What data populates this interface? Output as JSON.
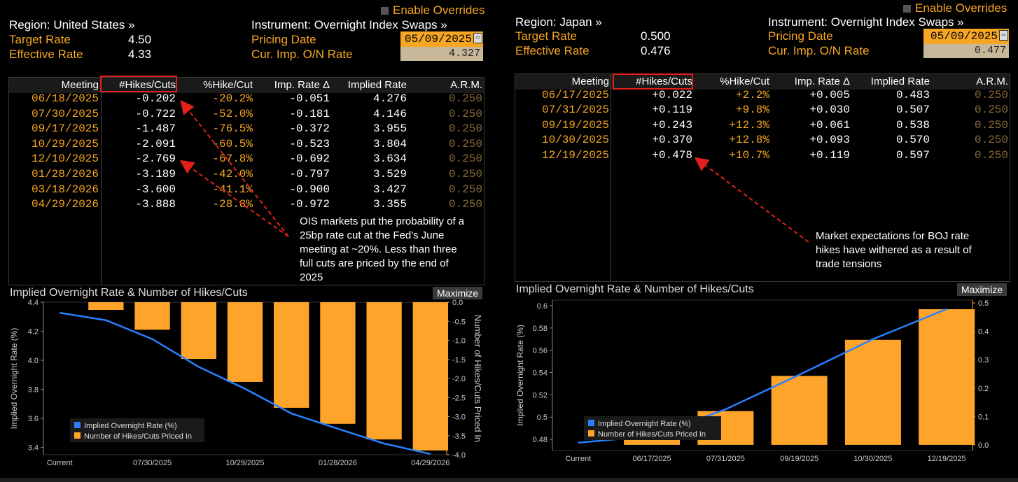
{
  "left": {
    "region": "Region: United States »",
    "enable_overrides": "Enable Overrides",
    "instrument": "Instrument: Overnight Index Swaps »",
    "target_rate_label": "Target Rate",
    "target_rate": "4.50",
    "effective_rate_label": "Effective Rate",
    "effective_rate": "4.33",
    "pricing_date_label": "Pricing Date",
    "pricing_date": "05/09/2025",
    "cur_imp_label": "Cur. Imp. O/N Rate",
    "cur_imp": "4.327",
    "columns": [
      "Meeting",
      "#Hikes/Cuts",
      "%Hike/Cut",
      "Imp. Rate Δ",
      "Implied Rate",
      "A.R.M."
    ],
    "rows": [
      {
        "meeting": "06/18/2025",
        "hikes": "-0.202",
        "pct": "-20.2%",
        "delta": "-0.051",
        "implied": "4.276",
        "arm": "0.250"
      },
      {
        "meeting": "07/30/2025",
        "hikes": "-0.722",
        "pct": "-52.0%",
        "delta": "-0.181",
        "implied": "4.146",
        "arm": "0.250"
      },
      {
        "meeting": "09/17/2025",
        "hikes": "-1.487",
        "pct": "-76.5%",
        "delta": "-0.372",
        "implied": "3.955",
        "arm": "0.250"
      },
      {
        "meeting": "10/29/2025",
        "hikes": "-2.091",
        "pct": "-60.5%",
        "delta": "-0.523",
        "implied": "3.804",
        "arm": "0.250"
      },
      {
        "meeting": "12/10/2025",
        "hikes": "-2.769",
        "pct": "-67.8%",
        "delta": "-0.692",
        "implied": "3.634",
        "arm": "0.250"
      },
      {
        "meeting": "01/28/2026",
        "hikes": "-3.189",
        "pct": "-42.0%",
        "delta": "-0.797",
        "implied": "3.529",
        "arm": "0.250"
      },
      {
        "meeting": "03/18/2026",
        "hikes": "-3.600",
        "pct": "-41.1%",
        "delta": "-0.900",
        "implied": "3.427",
        "arm": "0.250"
      },
      {
        "meeting": "04/29/2026",
        "hikes": "-3.888",
        "pct": "-28.8%",
        "delta": "-0.972",
        "implied": "3.355",
        "arm": "0.250"
      }
    ],
    "annotation": "OIS markets put the probability of a 25bp rate cut at the Fed's June meeting at ~20%. Less than three full cuts are priced by the end of 2025",
    "chart_title": "Implied Overnight Rate & Number of Hikes/Cuts",
    "maximize": "Maximize"
  },
  "right": {
    "region": "Region: Japan »",
    "enable_overrides": "Enable Overrides",
    "instrument": "Instrument: Overnight Index Swaps »",
    "target_rate_label": "Target Rate",
    "target_rate": "0.500",
    "effective_rate_label": "Effective Rate",
    "effective_rate": "0.476",
    "pricing_date_label": "Pricing Date",
    "pricing_date": "05/09/2025",
    "cur_imp_label": "Cur. Imp. O/N Rate",
    "cur_imp": "0.477",
    "columns": [
      "Meeting",
      "#Hikes/Cuts",
      "%Hike/Cut",
      "Imp. Rate Δ",
      "Implied Rate",
      "A.R.M."
    ],
    "rows": [
      {
        "meeting": "06/17/2025",
        "hikes": "+0.022",
        "pct": "+2.2%",
        "delta": "+0.005",
        "implied": "0.483",
        "arm": "0.250"
      },
      {
        "meeting": "07/31/2025",
        "hikes": "+0.119",
        "pct": "+9.8%",
        "delta": "+0.030",
        "implied": "0.507",
        "arm": "0.250"
      },
      {
        "meeting": "09/19/2025",
        "hikes": "+0.243",
        "pct": "+12.3%",
        "delta": "+0.061",
        "implied": "0.538",
        "arm": "0.250"
      },
      {
        "meeting": "10/30/2025",
        "hikes": "+0.370",
        "pct": "+12.8%",
        "delta": "+0.093",
        "implied": "0.570",
        "arm": "0.250"
      },
      {
        "meeting": "12/19/2025",
        "hikes": "+0.478",
        "pct": "+10.7%",
        "delta": "+0.119",
        "implied": "0.597",
        "arm": "0.250"
      }
    ],
    "annotation": "Market expectations for BOJ rate hikes have withered as a result of trade tensions",
    "chart_title": "Implied Overnight Rate & Number of Hikes/Cuts",
    "maximize": "Maximize"
  },
  "chart_data": [
    {
      "type": "bar",
      "title": "Implied Overnight Rate & Number of Hikes/Cuts",
      "categories": [
        "Current",
        "06/18/2025",
        "07/30/2025",
        "09/17/2025",
        "10/29/2025",
        "12/10/2025",
        "01/28/2026",
        "03/18/2026",
        "04/29/2026"
      ],
      "x_tick_labels": [
        "Current",
        "07/30/2025",
        "10/29/2025",
        "01/28/2026",
        "04/29/2026"
      ],
      "series": [
        {
          "name": "Implied Overnight Rate (%)",
          "type": "line",
          "axis": "left",
          "color": "#2a7fff",
          "values": [
            4.327,
            4.276,
            4.146,
            3.955,
            3.804,
            3.634,
            3.529,
            3.427,
            3.355
          ]
        },
        {
          "name": "Number of Hikes/Cuts Priced In",
          "type": "bar",
          "axis": "right",
          "color": "#ffa42a",
          "values": [
            0,
            -0.202,
            -0.722,
            -1.487,
            -2.091,
            -2.769,
            -3.189,
            -3.6,
            -3.888
          ]
        }
      ],
      "ylabel": "Implied Overnight Rate (%)",
      "ylabel_right": "Number of Hikes/Cuts Priced In",
      "ylim": [
        3.35,
        4.4
      ],
      "ylim_right": [
        -4.0,
        0.0
      ],
      "yticks": [
        "3.4",
        "3.6",
        "3.8",
        "4.0",
        "4.2",
        "4.4"
      ],
      "yticks_right": [
        "-4.0",
        "-3.5",
        "-3.0",
        "-2.5",
        "-2.0",
        "-1.5",
        "-1.0",
        "-0.5",
        "0.0"
      ],
      "legend": "bottom-left",
      "grid": false
    },
    {
      "type": "bar",
      "title": "Implied Overnight Rate & Number of Hikes/Cuts",
      "categories": [
        "Current",
        "06/17/2025",
        "07/31/2025",
        "09/19/2025",
        "10/30/2025",
        "12/19/2025"
      ],
      "x_tick_labels": [
        "Current",
        "06/17/2025",
        "07/31/2025",
        "09/19/2025",
        "10/30/2025",
        "12/19/2025"
      ],
      "series": [
        {
          "name": "Implied Overnight Rate (%)",
          "type": "line",
          "axis": "left",
          "color": "#2a7fff",
          "values": [
            0.477,
            0.483,
            0.507,
            0.538,
            0.57,
            0.597
          ]
        },
        {
          "name": "Number of Hikes/Cuts Priced In",
          "type": "bar",
          "axis": "right",
          "color": "#ffa42a",
          "values": [
            0,
            0.022,
            0.119,
            0.243,
            0.37,
            0.478
          ]
        }
      ],
      "ylabel": "Implied Overnight Rate (%)",
      "ylabel_right": "",
      "ylim": [
        0.47,
        0.605
      ],
      "ylim_right": [
        -0.02,
        0.51
      ],
      "yticks": [
        "0.48",
        "0.5",
        "0.52",
        "0.54",
        "0.56",
        "0.58",
        "0.6"
      ],
      "yticks_right": [
        "0.0",
        "0.1",
        "0.2",
        "0.3",
        "0.4",
        "0.5"
      ],
      "legend": "bottom-left",
      "grid": false
    }
  ]
}
